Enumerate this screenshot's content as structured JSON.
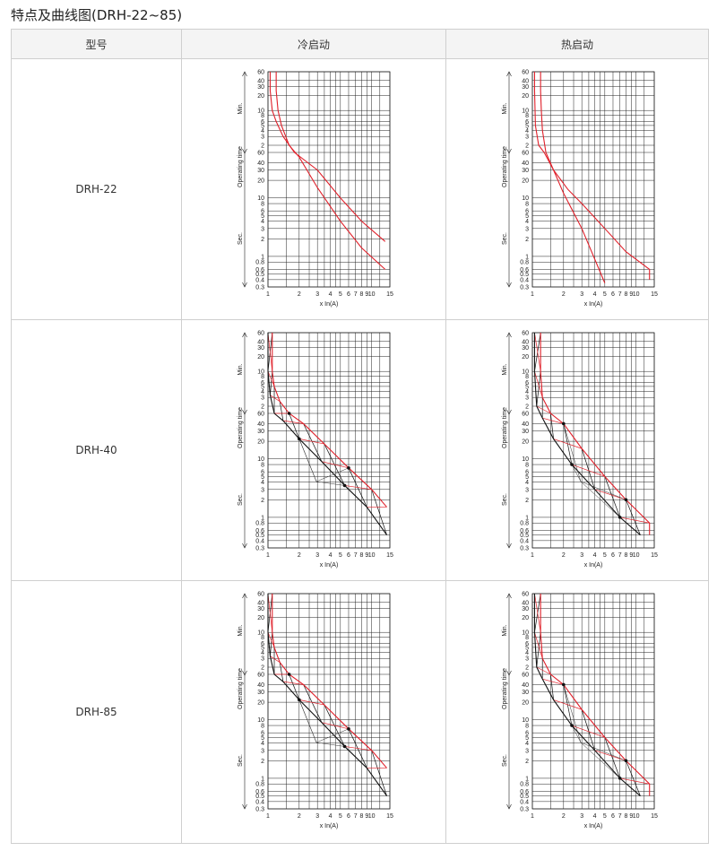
{
  "title": "特点及曲线图(DRH-22~85)",
  "table": {
    "headers": [
      "型号",
      "冷启动",
      "热启动"
    ],
    "rows": [
      {
        "model": "DRH-22"
      },
      {
        "model": "DRH-40"
      },
      {
        "model": "DRH-85"
      }
    ]
  },
  "axis": {
    "ylabel": "Operating time",
    "min_label": "Min.",
    "sec_label": "Sec.",
    "xlabel": "x  In(A)",
    "min_ticks": [
      "60",
      "40",
      "30",
      "20",
      "10",
      "8",
      "6",
      "5",
      "4",
      "3",
      "2"
    ],
    "sec_ticks": [
      "60",
      "40",
      "30",
      "20",
      "10",
      "8",
      "6",
      "5",
      "4",
      "3",
      "2",
      "1",
      "0.8",
      "0.6",
      "0.5",
      "0.4",
      "0.3"
    ],
    "x_ticks": [
      "1",
      "2",
      "3",
      "4",
      "5",
      "6",
      "7",
      "8",
      "9",
      "10",
      "15"
    ]
  },
  "colors": {
    "curve_cold": "#e0202a",
    "curve_hot": "#000000",
    "grid": "#222222"
  },
  "chart_data": [
    {
      "type": "line",
      "model": "DRH-22",
      "mode": "cold",
      "x_scale": "log",
      "xlim": [
        1,
        15
      ],
      "y_unit": "seconds",
      "y_scale": "log",
      "ylim": [
        0.3,
        3600
      ],
      "hatched": false,
      "series": [
        {
          "x": [
            1.05,
            1.05,
            1.1,
            1.2,
            1.4,
            1.8,
            3,
            5,
            8,
            13.5,
            13.5
          ],
          "y": [
            3600,
            1500,
            600,
            360,
            180,
            90,
            30,
            10,
            4,
            1.8,
            1.8
          ]
        },
        {
          "x": [
            1.2,
            1.2,
            1.25,
            1.35,
            1.6,
            2,
            3,
            5,
            8,
            13.5
          ],
          "y": [
            3600,
            1500,
            600,
            300,
            120,
            50,
            15,
            4,
            1.4,
            0.6
          ]
        }
      ]
    },
    {
      "type": "line",
      "model": "DRH-22",
      "mode": "hot",
      "x_scale": "log",
      "xlim": [
        1,
        15
      ],
      "y_unit": "seconds",
      "y_scale": "log",
      "ylim": [
        0.3,
        3600
      ],
      "hatched": false,
      "series": [
        {
          "x": [
            1.05,
            1.05,
            1.07,
            1.15,
            1.3,
            1.6,
            2.2,
            3,
            5,
            8,
            13.5,
            13.5
          ],
          "y": [
            3600,
            1500,
            300,
            120,
            60,
            30,
            14,
            8,
            3,
            1.2,
            0.6,
            0.4
          ]
        },
        {
          "x": [
            1.2,
            1.2,
            1.22,
            1.25,
            1.35,
            1.6,
            2,
            3,
            5
          ],
          "y": [
            3600,
            1500,
            600,
            240,
            90,
            30,
            12,
            3,
            0.35
          ]
        }
      ]
    },
    {
      "type": "line",
      "model": "DRH-40",
      "mode": "cold",
      "x_scale": "log",
      "xlim": [
        1,
        15
      ],
      "y_unit": "seconds",
      "y_scale": "log",
      "ylim": [
        0.3,
        3600
      ],
      "hatched": true,
      "series": [
        {
          "x": [
            1.1,
            1.1,
            1.15,
            1.3,
            1.6,
            2.2,
            3.5,
            6,
            10,
            14
          ],
          "y": [
            3600,
            600,
            300,
            150,
            70,
            40,
            18,
            7,
            3,
            1.5
          ]
        },
        {
          "x": [
            1.0,
            1.0,
            1.05,
            1.15,
            1.4,
            2,
            3.3,
            5.5,
            9,
            14
          ],
          "y": [
            3600,
            600,
            200,
            90,
            45,
            22,
            9,
            3.5,
            1.5,
            0.5
          ]
        }
      ]
    },
    {
      "type": "line",
      "model": "DRH-40",
      "mode": "hot",
      "x_scale": "log",
      "xlim": [
        1,
        15
      ],
      "y_unit": "seconds",
      "y_scale": "log",
      "ylim": [
        0.3,
        3600
      ],
      "hatched": true,
      "series": [
        {
          "x": [
            1.2,
            1.2,
            1.25,
            1.5,
            2,
            3,
            5,
            8,
            13.5,
            13.5
          ],
          "y": [
            3600,
            600,
            180,
            80,
            40,
            15,
            5,
            2,
            0.8,
            0.5
          ]
        },
        {
          "x": [
            1.05,
            1.05,
            1.1,
            1.25,
            1.6,
            2.4,
            4,
            7,
            11
          ],
          "y": [
            3600,
            600,
            120,
            50,
            22,
            8,
            3,
            1,
            0.5
          ]
        }
      ]
    },
    {
      "type": "line",
      "model": "DRH-85",
      "mode": "cold",
      "x_scale": "log",
      "xlim": [
        1,
        15
      ],
      "y_unit": "seconds",
      "y_scale": "log",
      "ylim": [
        0.3,
        3600
      ],
      "hatched": true,
      "series": [
        {
          "x": [
            1.1,
            1.1,
            1.15,
            1.3,
            1.6,
            2.2,
            3.5,
            6,
            10,
            14
          ],
          "y": [
            3600,
            600,
            300,
            150,
            70,
            40,
            18,
            7,
            3,
            1.5
          ]
        },
        {
          "x": [
            1.0,
            1.0,
            1.05,
            1.15,
            1.4,
            2,
            3.3,
            5.5,
            9,
            14
          ],
          "y": [
            3600,
            600,
            200,
            90,
            45,
            22,
            9,
            3.5,
            1.5,
            0.5
          ]
        }
      ]
    },
    {
      "type": "line",
      "model": "DRH-85",
      "mode": "hot",
      "x_scale": "log",
      "xlim": [
        1,
        15
      ],
      "y_unit": "seconds",
      "y_scale": "log",
      "ylim": [
        0.3,
        3600
      ],
      "hatched": true,
      "series": [
        {
          "x": [
            1.2,
            1.2,
            1.25,
            1.5,
            2,
            3,
            5,
            8,
            13.5,
            13.5
          ],
          "y": [
            3600,
            600,
            180,
            80,
            40,
            15,
            5,
            2,
            0.8,
            0.5
          ]
        },
        {
          "x": [
            1.05,
            1.05,
            1.1,
            1.25,
            1.6,
            2.4,
            4,
            7,
            11
          ],
          "y": [
            3600,
            600,
            120,
            50,
            22,
            8,
            3,
            1,
            0.5
          ]
        }
      ]
    }
  ]
}
